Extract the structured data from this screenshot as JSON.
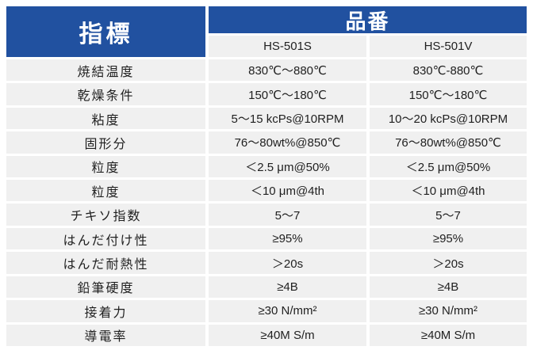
{
  "colors": {
    "header-blue": "#2151A0",
    "row-bg": "#F0F0F0",
    "text": "#1F1F1F"
  },
  "table": {
    "header": {
      "metric_label": "指標",
      "product_group_label": "品番"
    },
    "columns": [
      "HS-501S",
      "HS-501V"
    ],
    "rows": [
      {
        "label": "焼結温度",
        "hs501s": "830℃～880℃",
        "hs501v": "830℃-880℃"
      },
      {
        "label": "乾燥条件",
        "hs501s": "150℃～180℃",
        "hs501v": "150℃～180℃"
      },
      {
        "label": "粘度",
        "hs501s": "5～15 kcPs@10RPM",
        "hs501v": "10～20 kcPs@10RPM"
      },
      {
        "label": "固形分",
        "hs501s": "76～80wt%@850℃",
        "hs501v": "76～80wt%@850℃"
      },
      {
        "label": "粒度",
        "hs501s": "＜2.5 μm@50%",
        "hs501v": "＜2.5 μm@50%"
      },
      {
        "label": "粒度",
        "hs501s": "＜10 μm@4th",
        "hs501v": "＜10 μm@4th"
      },
      {
        "label": "チキソ指数",
        "hs501s": "5～7",
        "hs501v": "5～7"
      },
      {
        "label": "はんだ付け性",
        "hs501s": "≥95%",
        "hs501v": "≥95%"
      },
      {
        "label": "はんだ耐熱性",
        "hs501s": "＞20s",
        "hs501v": "＞20s"
      },
      {
        "label": "鉛筆硬度",
        "hs501s": "≥4B",
        "hs501v": "≥4B"
      },
      {
        "label": "接着力",
        "hs501s": "≥30 N/mm²",
        "hs501v": "≥30 N/mm²"
      },
      {
        "label": "導電率",
        "hs501s": "≥40M S/m",
        "hs501v": "≥40M S/m"
      }
    ]
  }
}
